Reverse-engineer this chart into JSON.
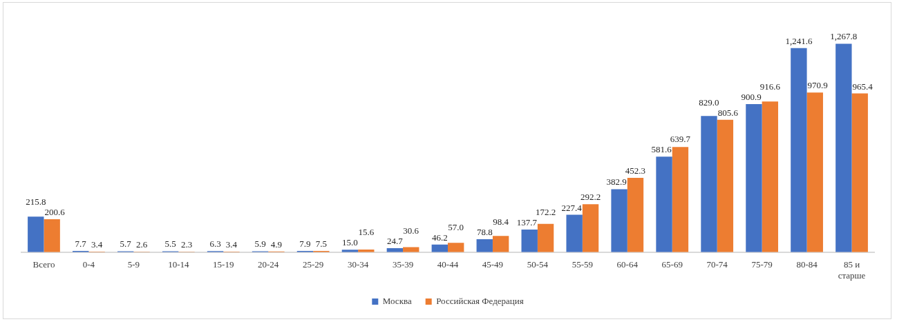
{
  "chart_data": {
    "type": "bar",
    "categories": [
      "Всего",
      "0-4",
      "5-9",
      "10-14",
      "15-19",
      "20-24",
      "25-29",
      "30-34",
      "35-39",
      "40-44",
      "45-49",
      "50-54",
      "55-59",
      "60-64",
      "65-69",
      "70-74",
      "75-79",
      "80-84",
      "85 и старше"
    ],
    "series": [
      {
        "name": "Москва",
        "color": "#4472c4",
        "values": [
          215.8,
          7.7,
          5.7,
          5.5,
          6.3,
          5.9,
          7.9,
          15.0,
          24.7,
          46.2,
          78.8,
          137.7,
          227.4,
          382.9,
          581.6,
          829.0,
          900.9,
          1241.6,
          1267.8
        ],
        "value_labels": [
          "215.8",
          "7.7",
          "5.7",
          "5.5",
          "6.3",
          "5.9",
          "7.9",
          "15.0",
          "24.7",
          "46.2",
          "78.8",
          "137.7",
          "227.4",
          "382.9",
          "581.6",
          "829.0",
          "900.9",
          "1,241.6",
          "1,267.8"
        ]
      },
      {
        "name": "Российская Федерация",
        "color": "#ed7d31",
        "values": [
          200.6,
          3.4,
          2.6,
          2.3,
          3.4,
          4.9,
          7.5,
          15.6,
          30.6,
          57.0,
          98.4,
          172.2,
          292.2,
          452.3,
          639.7,
          805.6,
          916.6,
          970.9,
          965.4
        ],
        "value_labels": [
          "200.6",
          "3.4",
          "2.6",
          "2.3",
          "3.4",
          "4.9",
          "7.5",
          "15.6",
          "30.6",
          "57.0",
          "98.4",
          "172.2",
          "292.2",
          "452.3",
          "639.7",
          "805.6",
          "916.6",
          "970.9",
          "965.4"
        ]
      }
    ],
    "legend": "bottom",
    "tick_labels": "x"
  }
}
